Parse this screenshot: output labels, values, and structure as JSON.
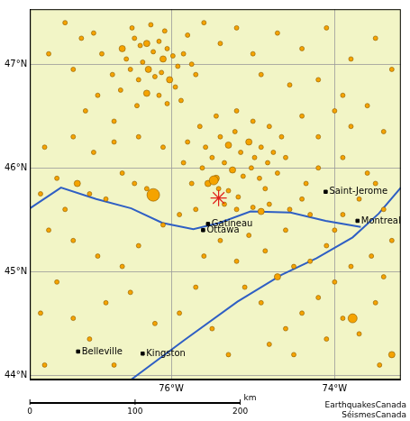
{
  "chart_data": {
    "type": "scatter",
    "xlim": [
      -77.73,
      -73.19
    ],
    "ylim": [
      43.96,
      47.53
    ],
    "xticks": [
      {
        "value": -76,
        "label": "76°W"
      },
      {
        "value": -74,
        "label": "74°W"
      }
    ],
    "yticks": [
      {
        "value": 44,
        "label": "44°N"
      },
      {
        "value": 45,
        "label": "45°N"
      },
      {
        "value": 46,
        "label": "46°N"
      },
      {
        "value": 47,
        "label": "47°N"
      }
    ],
    "grid": true,
    "rivers": {
      "color": "#2f5fc4",
      "lines": [
        [
          [
            -77.73,
            45.61
          ],
          [
            -77.35,
            45.81
          ],
          [
            -76.92,
            45.7
          ],
          [
            -76.49,
            45.61
          ],
          [
            -76.11,
            45.47
          ],
          [
            -75.73,
            45.41
          ],
          [
            -75.41,
            45.47
          ],
          [
            -75.03,
            45.58
          ],
          [
            -74.54,
            45.57
          ],
          [
            -74.11,
            45.49
          ],
          [
            -73.68,
            45.43
          ]
        ],
        [
          [
            -76.49,
            43.96
          ],
          [
            -75.84,
            44.34
          ],
          [
            -75.19,
            44.71
          ],
          [
            -74.65,
            44.97
          ],
          [
            -74.22,
            45.13
          ],
          [
            -73.78,
            45.33
          ],
          [
            -73.46,
            45.56
          ],
          [
            -73.19,
            45.81
          ]
        ]
      ]
    },
    "earthquakes": {
      "color": "#f5a300",
      "marker": "circle",
      "points": [
        [
          -76.45,
          47.25,
          2
        ],
        [
          -76.38,
          47.18,
          2
        ],
        [
          -76.3,
          47.2,
          3
        ],
        [
          -76.22,
          47.12,
          2
        ],
        [
          -76.15,
          47.22,
          2
        ],
        [
          -76.1,
          47.05,
          3
        ],
        [
          -76.05,
          47.15,
          2
        ],
        [
          -75.98,
          47.08,
          2
        ],
        [
          -75.92,
          46.98,
          2
        ],
        [
          -75.85,
          47.1,
          2
        ],
        [
          -76.35,
          47.02,
          2
        ],
        [
          -76.28,
          46.95,
          3
        ],
        [
          -76.2,
          46.88,
          2
        ],
        [
          -76.12,
          46.92,
          2
        ],
        [
          -76.02,
          46.85,
          3
        ],
        [
          -75.95,
          46.78,
          2
        ],
        [
          -76.4,
          46.85,
          2
        ],
        [
          -76.5,
          46.95,
          2
        ],
        [
          -76.55,
          47.05,
          2
        ],
        [
          -76.6,
          47.15,
          3
        ],
        [
          -76.48,
          47.35,
          2
        ],
        [
          -76.25,
          47.38,
          2
        ],
        [
          -76.08,
          47.32,
          2
        ],
        [
          -75.8,
          47.28,
          2
        ],
        [
          -75.75,
          47.0,
          2
        ],
        [
          -75.7,
          46.9,
          2
        ],
        [
          -76.15,
          46.7,
          2
        ],
        [
          -76.3,
          46.72,
          3
        ],
        [
          -76.05,
          46.62,
          2
        ],
        [
          -75.88,
          46.65,
          2
        ],
        [
          -76.42,
          46.6,
          2
        ],
        [
          -76.62,
          46.75,
          2
        ],
        [
          -76.72,
          46.9,
          2
        ],
        [
          -76.85,
          47.1,
          2
        ],
        [
          -76.95,
          47.3,
          2
        ],
        [
          -77.1,
          47.25,
          2
        ],
        [
          -77.3,
          47.4,
          2
        ],
        [
          -77.5,
          47.1,
          2
        ],
        [
          -77.2,
          46.95,
          2
        ],
        [
          -76.9,
          46.7,
          2
        ],
        [
          -77.05,
          46.55,
          2
        ],
        [
          -76.7,
          46.45,
          2
        ],
        [
          -75.6,
          47.4,
          2
        ],
        [
          -75.4,
          47.2,
          2
        ],
        [
          -75.2,
          47.35,
          2
        ],
        [
          -75.0,
          47.1,
          2
        ],
        [
          -74.7,
          47.3,
          2
        ],
        [
          -74.4,
          47.15,
          2
        ],
        [
          -74.1,
          47.35,
          2
        ],
        [
          -73.8,
          47.05,
          2
        ],
        [
          -73.5,
          47.25,
          2
        ],
        [
          -73.3,
          46.95,
          2
        ],
        [
          -74.9,
          46.9,
          2
        ],
        [
          -74.55,
          46.8,
          2
        ],
        [
          -74.2,
          46.85,
          2
        ],
        [
          -73.9,
          46.7,
          2
        ],
        [
          -73.6,
          46.6,
          2
        ],
        [
          -73.4,
          46.35,
          2
        ],
        [
          -75.4,
          46.3,
          2
        ],
        [
          -75.3,
          46.22,
          3
        ],
        [
          -75.22,
          46.35,
          2
        ],
        [
          -75.15,
          46.15,
          2
        ],
        [
          -75.05,
          46.25,
          3
        ],
        [
          -74.98,
          46.1,
          2
        ],
        [
          -74.9,
          46.2,
          2
        ],
        [
          -74.82,
          46.05,
          2
        ],
        [
          -74.75,
          46.15,
          2
        ],
        [
          -75.35,
          46.05,
          2
        ],
        [
          -75.25,
          45.98,
          3
        ],
        [
          -75.12,
          45.92,
          2
        ],
        [
          -75.02,
          46.0,
          2
        ],
        [
          -74.92,
          45.9,
          2
        ],
        [
          -75.45,
          45.9,
          3
        ],
        [
          -75.5,
          46.1,
          2
        ],
        [
          -75.58,
          46.2,
          2
        ],
        [
          -75.62,
          46.0,
          2
        ],
        [
          -75.55,
          45.85,
          3
        ],
        [
          -75.42,
          45.8,
          2
        ],
        [
          -75.3,
          45.78,
          2
        ],
        [
          -75.18,
          45.72,
          2
        ],
        [
          -74.85,
          45.8,
          2
        ],
        [
          -74.7,
          45.95,
          2
        ],
        [
          -74.6,
          46.1,
          2
        ],
        [
          -74.65,
          46.3,
          2
        ],
        [
          -74.8,
          46.4,
          2
        ],
        [
          -75.0,
          46.45,
          2
        ],
        [
          -75.2,
          46.55,
          2
        ],
        [
          -75.45,
          46.5,
          2
        ],
        [
          -75.65,
          46.4,
          2
        ],
        [
          -75.8,
          46.25,
          2
        ],
        [
          -75.85,
          46.05,
          2
        ],
        [
          -75.75,
          45.85,
          2
        ],
        [
          -75.48,
          45.88,
          4
        ],
        [
          -75.35,
          45.65,
          2
        ],
        [
          -75.2,
          45.6,
          2
        ],
        [
          -75.0,
          45.62,
          2
        ],
        [
          -74.9,
          45.58,
          3
        ],
        [
          -74.8,
          45.65,
          2
        ],
        [
          -74.55,
          45.6,
          2
        ],
        [
          -74.4,
          45.7,
          2
        ],
        [
          -75.7,
          45.6,
          2
        ],
        [
          -75.9,
          45.55,
          2
        ],
        [
          -76.1,
          45.45,
          2
        ],
        [
          -76.22,
          45.74,
          5
        ],
        [
          -76.3,
          45.8,
          2
        ],
        [
          -76.45,
          45.85,
          2
        ],
        [
          -76.6,
          45.95,
          2
        ],
        [
          -76.8,
          45.7,
          2
        ],
        [
          -77.0,
          45.75,
          2
        ],
        [
          -77.15,
          45.85,
          3
        ],
        [
          -77.4,
          45.9,
          2
        ],
        [
          -77.6,
          45.75,
          2
        ],
        [
          -77.3,
          45.6,
          2
        ],
        [
          -77.55,
          46.2,
          2
        ],
        [
          -77.2,
          46.3,
          2
        ],
        [
          -76.95,
          46.15,
          2
        ],
        [
          -76.7,
          46.25,
          2
        ],
        [
          -76.4,
          46.3,
          2
        ],
        [
          -76.1,
          46.2,
          2
        ],
        [
          -77.5,
          45.4,
          2
        ],
        [
          -77.2,
          45.3,
          2
        ],
        [
          -76.9,
          45.15,
          2
        ],
        [
          -76.6,
          45.05,
          2
        ],
        [
          -76.4,
          45.25,
          2
        ],
        [
          -77.4,
          44.9,
          2
        ],
        [
          -77.6,
          44.6,
          2
        ],
        [
          -77.2,
          44.55,
          2
        ],
        [
          -76.8,
          44.7,
          2
        ],
        [
          -76.5,
          44.8,
          2
        ],
        [
          -77.0,
          44.35,
          2
        ],
        [
          -76.2,
          44.5,
          2
        ],
        [
          -75.9,
          44.6,
          2
        ],
        [
          -75.7,
          44.85,
          2
        ],
        [
          -75.5,
          44.45,
          2
        ],
        [
          -75.3,
          44.2,
          2
        ],
        [
          -74.5,
          45.05,
          2
        ],
        [
          -74.7,
          44.95,
          3
        ],
        [
          -74.3,
          45.1,
          2
        ],
        [
          -74.1,
          45.25,
          2
        ],
        [
          -74.0,
          45.4,
          2
        ],
        [
          -73.9,
          45.55,
          2
        ],
        [
          -73.7,
          45.7,
          2
        ],
        [
          -73.5,
          45.85,
          2
        ],
        [
          -73.4,
          45.6,
          2
        ],
        [
          -73.3,
          45.3,
          2
        ],
        [
          -73.55,
          45.15,
          2
        ],
        [
          -73.8,
          45.05,
          2
        ],
        [
          -74.0,
          44.9,
          2
        ],
        [
          -74.2,
          44.75,
          2
        ],
        [
          -74.4,
          44.6,
          2
        ],
        [
          -74.6,
          44.45,
          2
        ],
        [
          -74.8,
          44.3,
          2
        ],
        [
          -74.5,
          44.2,
          2
        ],
        [
          -74.1,
          44.35,
          2
        ],
        [
          -73.9,
          44.55,
          2
        ],
        [
          -73.78,
          44.55,
          4
        ],
        [
          -73.7,
          44.4,
          2
        ],
        [
          -73.5,
          44.7,
          2
        ],
        [
          -73.4,
          44.95,
          2
        ],
        [
          -73.3,
          44.2,
          3
        ],
        [
          -74.9,
          44.7,
          2
        ],
        [
          -75.1,
          44.85,
          2
        ],
        [
          -75.2,
          45.1,
          2
        ],
        [
          -74.85,
          45.2,
          2
        ],
        [
          -75.05,
          45.35,
          2
        ],
        [
          -75.4,
          45.3,
          2
        ],
        [
          -75.6,
          45.15,
          2
        ],
        [
          -74.6,
          45.4,
          2
        ],
        [
          -74.3,
          45.55,
          2
        ],
        [
          -73.6,
          45.95,
          2
        ],
        [
          -73.9,
          46.1,
          2
        ],
        [
          -74.2,
          46.0,
          2
        ],
        [
          -74.35,
          45.85,
          2
        ],
        [
          -74.2,
          46.3,
          2
        ],
        [
          -73.8,
          46.4,
          2
        ],
        [
          -74.0,
          46.55,
          2
        ],
        [
          -74.4,
          46.5,
          2
        ],
        [
          -77.55,
          44.1,
          2
        ],
        [
          -76.7,
          44.1,
          2
        ],
        [
          -73.45,
          44.1,
          2
        ]
      ]
    },
    "epicentre": {
      "x": -75.42,
      "y": 45.71,
      "color": "#e0201b",
      "marker": "star"
    },
    "places": {
      "color": "#000000",
      "marker": "rect",
      "items": [
        {
          "label": "Belleville",
          "x": -77.14,
          "y": 44.23
        },
        {
          "label": "Kingston",
          "x": -76.35,
          "y": 44.21
        },
        {
          "label": "Gatineau",
          "x": -75.55,
          "y": 45.46
        },
        {
          "label": "Ottawa",
          "x": -75.61,
          "y": 45.4
        },
        {
          "label": "Saint-Jerome",
          "x": -74.11,
          "y": 45.77
        },
        {
          "label": "Montreal",
          "x": -73.72,
          "y": 45.49
        }
      ]
    },
    "scale_bar": {
      "ticks": [
        0,
        100,
        200
      ],
      "unit": "km"
    },
    "credit": [
      "EarthquakesCanada",
      "SéismesCanada"
    ]
  }
}
